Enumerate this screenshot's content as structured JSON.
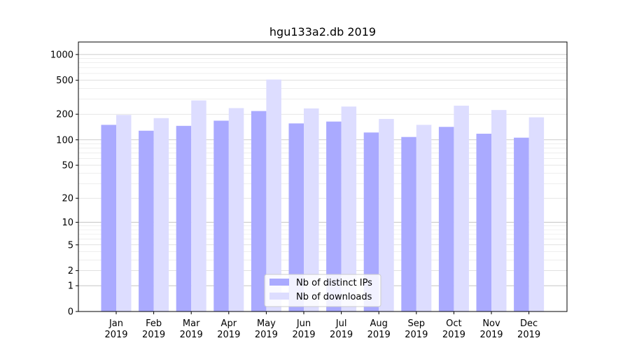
{
  "chart_data": {
    "type": "bar",
    "title": "hgu133a2.db 2019",
    "xlabel": "",
    "ylabel": "",
    "yscale": "log1p",
    "ylim": [
      0,
      1400
    ],
    "yticks": [
      0,
      1,
      2,
      5,
      10,
      20,
      50,
      100,
      200,
      500,
      1000
    ],
    "grid": true,
    "legend_position": "lower-center",
    "categories": [
      {
        "month": "Jan",
        "year": "2019"
      },
      {
        "month": "Feb",
        "year": "2019"
      },
      {
        "month": "Mar",
        "year": "2019"
      },
      {
        "month": "Apr",
        "year": "2019"
      },
      {
        "month": "May",
        "year": "2019"
      },
      {
        "month": "Jun",
        "year": "2019"
      },
      {
        "month": "Jul",
        "year": "2019"
      },
      {
        "month": "Aug",
        "year": "2019"
      },
      {
        "month": "Sep",
        "year": "2019"
      },
      {
        "month": "Oct",
        "year": "2019"
      },
      {
        "month": "Nov",
        "year": "2019"
      },
      {
        "month": "Dec",
        "year": "2019"
      }
    ],
    "series": [
      {
        "name": "Nb of distinct IPs",
        "color": "#aaaaff",
        "values": [
          150,
          128,
          146,
          168,
          218,
          156,
          164,
          122,
          108,
          142,
          118,
          106
        ]
      },
      {
        "name": "Nb of downloads",
        "color": "#ddddff",
        "values": [
          196,
          180,
          290,
          236,
          510,
          234,
          246,
          176,
          150,
          252,
          224,
          184
        ]
      }
    ]
  }
}
